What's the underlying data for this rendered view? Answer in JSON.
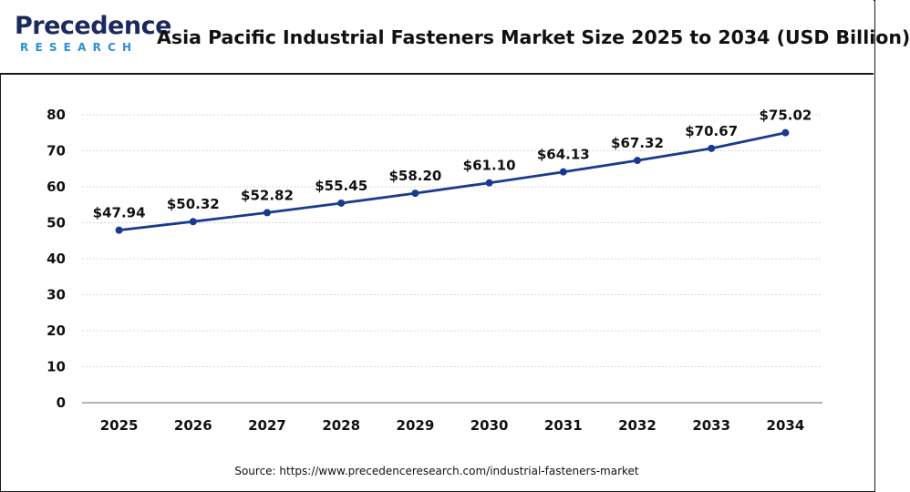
{
  "brand": {
    "logo_main": "Precedence",
    "logo_sub": "RESEARCH",
    "color_primary": "#1b2a5e",
    "color_secondary": "#2a8fd6"
  },
  "header": {
    "title": "Asia Pacific Industrial Fasteners Market Size 2025 to 2034 (USD Billion)"
  },
  "source": "Source: https://www.precedenceresearch.com/industrial-fasteners-market",
  "chart_data": {
    "type": "line",
    "title": "Asia Pacific Industrial Fasteners Market Size 2025 to 2034 (USD Billion)",
    "x": [
      "2025",
      "2026",
      "2027",
      "2028",
      "2029",
      "2030",
      "2031",
      "2032",
      "2033",
      "2034"
    ],
    "series": [
      {
        "values": [
          47.94,
          50.32,
          52.82,
          55.45,
          58.2,
          61.1,
          64.13,
          67.32,
          70.67,
          75.02
        ],
        "labels": [
          "$47.94",
          "$50.32",
          "$52.82",
          "$55.45",
          "$58.20",
          "$61.10",
          "$64.13",
          "$67.32",
          "$70.67",
          "$75.02"
        ],
        "color": "#1a3a8f"
      }
    ],
    "xlabel": "",
    "ylabel": "",
    "ylim": [
      0,
      80
    ],
    "yticks": [
      0,
      10,
      20,
      30,
      40,
      50,
      60,
      70,
      80
    ],
    "grid": true,
    "legend": "none"
  }
}
